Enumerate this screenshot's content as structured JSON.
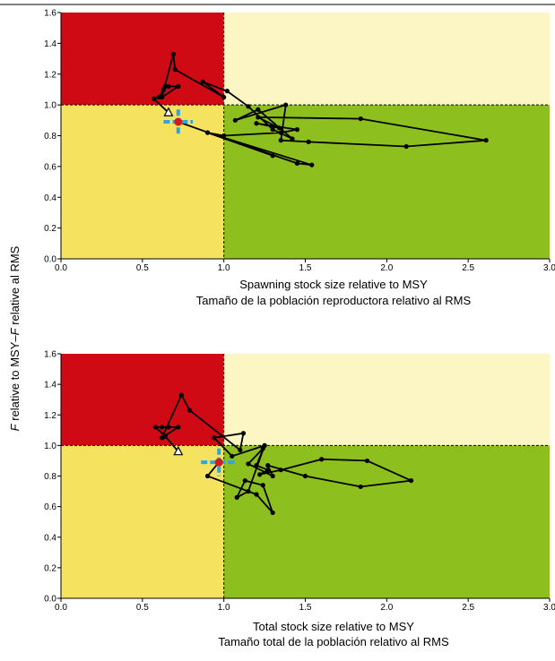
{
  "ylabel_parts": [
    "F",
    " relative to MSY–",
    "F",
    " relative al RMS"
  ],
  "colors": {
    "red": "#cf0a14",
    "pale_yellow": "#fbf6c4",
    "yellow": "#f5e35f",
    "green": "#8dbf1f",
    "trajectory": "#000000",
    "marker_red": "#d11d1d",
    "marker_blue": "#2aa7e0"
  },
  "chart_data": [
    {
      "type": "line",
      "xlabel": "Spawning stock size relative to MSY",
      "xlabel2": "Tamaño de la población reproductora relativo al RMS",
      "xlim": [
        0,
        3.0
      ],
      "ylim": [
        0,
        1.6
      ],
      "x_ticks": [
        "0.0",
        "0.5",
        "1.0",
        "1.5",
        "2.0",
        "2.5",
        "3.0"
      ],
      "y_ticks": [
        "0.0",
        "0.2",
        "0.4",
        "0.6",
        "0.8",
        "1.0",
        "1.2",
        "1.4",
        "1.6"
      ],
      "reference_lines": {
        "x": 1.0,
        "y": 1.0
      },
      "zones": [
        {
          "name": "overfishing-overfished",
          "x": [
            0,
            1.0
          ],
          "y": [
            1.0,
            1.6
          ],
          "color": "red"
        },
        {
          "name": "overfishing",
          "x": [
            1.0,
            3.0
          ],
          "y": [
            1.0,
            1.6
          ],
          "color": "pale_yellow"
        },
        {
          "name": "overfished",
          "x": [
            0,
            1.0
          ],
          "y": [
            0,
            1.0
          ],
          "color": "yellow"
        },
        {
          "name": "healthy",
          "x": [
            1.0,
            3.0
          ],
          "y": [
            0,
            1.0
          ],
          "color": "green"
        }
      ],
      "start_point": {
        "x": 0.66,
        "y": 0.95
      },
      "current_point": {
        "x": 0.72,
        "y": 0.89,
        "x_range": [
          0.63,
          0.81
        ],
        "y_range": [
          0.81,
          0.97
        ]
      },
      "trajectory": [
        {
          "x": 0.66,
          "y": 0.95
        },
        {
          "x": 0.57,
          "y": 1.04
        },
        {
          "x": 0.6,
          "y": 1.05
        },
        {
          "x": 0.63,
          "y": 1.1
        },
        {
          "x": 0.64,
          "y": 1.12
        },
        {
          "x": 0.66,
          "y": 1.12
        },
        {
          "x": 0.72,
          "y": 1.12
        },
        {
          "x": 0.62,
          "y": 1.05
        },
        {
          "x": 0.69,
          "y": 1.33
        },
        {
          "x": 0.7,
          "y": 1.23
        },
        {
          "x": 1.0,
          "y": 1.05
        },
        {
          "x": 0.87,
          "y": 1.15
        },
        {
          "x": 1.02,
          "y": 1.09
        },
        {
          "x": 1.15,
          "y": 0.99
        },
        {
          "x": 1.3,
          "y": 0.84
        },
        {
          "x": 1.42,
          "y": 0.78
        },
        {
          "x": 1.21,
          "y": 0.97
        },
        {
          "x": 1.07,
          "y": 0.9
        },
        {
          "x": 1.38,
          "y": 1.0
        },
        {
          "x": 1.35,
          "y": 0.77
        },
        {
          "x": 1.52,
          "y": 0.76
        },
        {
          "x": 2.12,
          "y": 0.73
        },
        {
          "x": 2.61,
          "y": 0.77
        },
        {
          "x": 1.84,
          "y": 0.91
        },
        {
          "x": 1.21,
          "y": 0.92
        },
        {
          "x": 1.34,
          "y": 0.85
        },
        {
          "x": 1.2,
          "y": 0.88
        },
        {
          "x": 1.45,
          "y": 0.84
        },
        {
          "x": 1.35,
          "y": 0.82
        },
        {
          "x": 1.0,
          "y": 0.8
        },
        {
          "x": 0.9,
          "y": 0.82
        },
        {
          "x": 1.45,
          "y": 0.62
        },
        {
          "x": 1.54,
          "y": 0.61
        },
        {
          "x": 0.9,
          "y": 0.82
        },
        {
          "x": 1.3,
          "y": 0.67
        },
        {
          "x": 0.72,
          "y": 0.89
        }
      ]
    },
    {
      "type": "line",
      "xlabel": "Total stock size relative to MSY",
      "xlabel2": "Tamaño total de la población relativo al RMS",
      "xlim": [
        0,
        3.0
      ],
      "ylim": [
        0,
        1.6
      ],
      "x_ticks": [
        "0.0",
        "0.5",
        "1.0",
        "1.5",
        "2.0",
        "2.5",
        "3.0"
      ],
      "y_ticks": [
        "0.0",
        "0.2",
        "0.4",
        "0.6",
        "0.8",
        "1.0",
        "1.2",
        "1.4",
        "1.6"
      ],
      "reference_lines": {
        "x": 1.0,
        "y": 1.0
      },
      "zones": [
        {
          "name": "overfishing-overfished",
          "x": [
            0,
            1.0
          ],
          "y": [
            1.0,
            1.6
          ],
          "color": "red"
        },
        {
          "name": "overfishing",
          "x": [
            1.0,
            3.0
          ],
          "y": [
            1.0,
            1.6
          ],
          "color": "pale_yellow"
        },
        {
          "name": "overfished",
          "x": [
            0,
            1.0
          ],
          "y": [
            0,
            1.0
          ],
          "color": "yellow"
        },
        {
          "name": "healthy",
          "x": [
            1.0,
            3.0
          ],
          "y": [
            0,
            1.0
          ],
          "color": "green"
        }
      ],
      "start_point": {
        "x": 0.72,
        "y": 0.96
      },
      "current_point": {
        "x": 0.97,
        "y": 0.89,
        "x_range": [
          0.86,
          1.08
        ],
        "y_range": [
          0.8,
          0.98
        ]
      },
      "trajectory": [
        {
          "x": 0.72,
          "y": 0.96
        },
        {
          "x": 0.64,
          "y": 1.06
        },
        {
          "x": 0.58,
          "y": 1.12
        },
        {
          "x": 0.62,
          "y": 1.12
        },
        {
          "x": 0.66,
          "y": 1.12
        },
        {
          "x": 0.72,
          "y": 1.12
        },
        {
          "x": 0.62,
          "y": 1.05
        },
        {
          "x": 0.74,
          "y": 1.33
        },
        {
          "x": 0.79,
          "y": 1.23
        },
        {
          "x": 1.1,
          "y": 0.97
        },
        {
          "x": 1.12,
          "y": 1.08
        },
        {
          "x": 0.94,
          "y": 1.05
        },
        {
          "x": 1.05,
          "y": 0.93
        },
        {
          "x": 1.25,
          "y": 1.0
        },
        {
          "x": 1.24,
          "y": 0.98
        },
        {
          "x": 1.15,
          "y": 0.88
        },
        {
          "x": 1.3,
          "y": 0.8
        },
        {
          "x": 1.27,
          "y": 0.87
        },
        {
          "x": 1.5,
          "y": 0.8
        },
        {
          "x": 1.84,
          "y": 0.73
        },
        {
          "x": 2.15,
          "y": 0.77
        },
        {
          "x": 1.88,
          "y": 0.9
        },
        {
          "x": 1.6,
          "y": 0.91
        },
        {
          "x": 1.35,
          "y": 0.84
        },
        {
          "x": 1.22,
          "y": 0.81
        },
        {
          "x": 1.27,
          "y": 0.84
        },
        {
          "x": 1.2,
          "y": 0.87
        },
        {
          "x": 1.25,
          "y": 1.0
        },
        {
          "x": 1.15,
          "y": 0.7
        },
        {
          "x": 1.08,
          "y": 0.66
        },
        {
          "x": 1.13,
          "y": 0.77
        },
        {
          "x": 1.24,
          "y": 0.74
        },
        {
          "x": 1.3,
          "y": 0.56
        },
        {
          "x": 1.2,
          "y": 0.68
        },
        {
          "x": 0.9,
          "y": 0.8
        },
        {
          "x": 0.97,
          "y": 0.89
        }
      ]
    }
  ]
}
